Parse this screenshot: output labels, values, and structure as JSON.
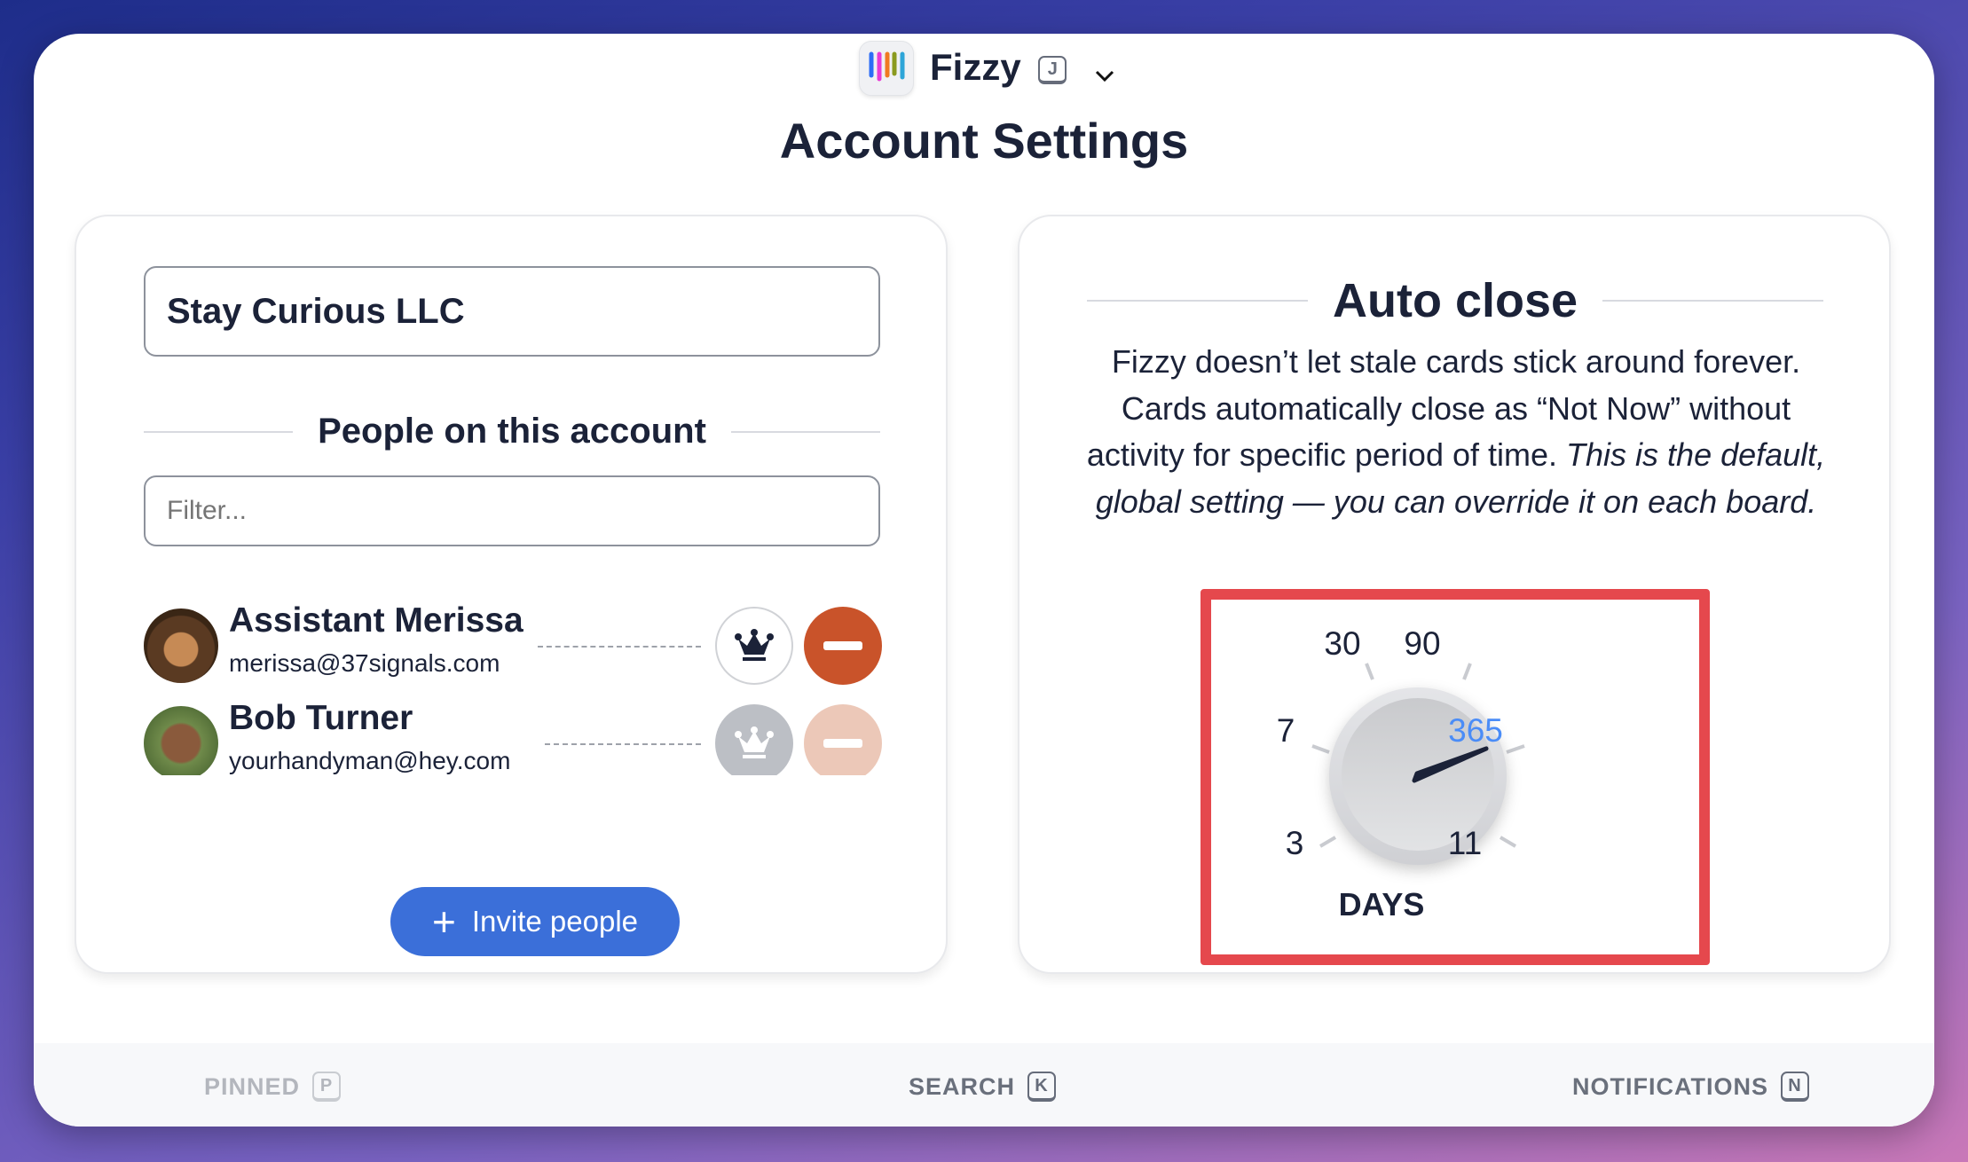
{
  "header": {
    "app_name": "Fizzy",
    "shortcut": "J",
    "page_title": "Account Settings"
  },
  "account": {
    "name_value": "Stay Curious LLC",
    "people_heading": "People on this account",
    "filter_placeholder": "Filter...",
    "people": [
      {
        "name": "Assistant Merissa",
        "email": "merissa@37signals.com",
        "admin": true,
        "removable": true
      },
      {
        "name": "Bob Turner",
        "email": "yourhandyman@hey.com",
        "admin": false,
        "removable": false
      }
    ],
    "invite_label": "Invite people"
  },
  "auto_close": {
    "heading": "Auto close",
    "description": "Fizzy doesn’t let stale cards stick around forever. Cards automatically close as “Not Now” without activity for specific period of time.",
    "description_italic": "This is the default, global setting — you can override it on each board.",
    "dial": {
      "options": [
        "3",
        "7",
        "30",
        "90",
        "365",
        "11"
      ],
      "selected": "365",
      "unit_label": "DAYS"
    }
  },
  "footer": {
    "pinned": {
      "label": "PINNED",
      "key": "P"
    },
    "search": {
      "label": "SEARCH",
      "key": "K"
    },
    "notifications": {
      "label": "NOTIFICATIONS",
      "key": "N"
    }
  },
  "colors": {
    "accent": "#3b6fd9",
    "danger": "#c9532a",
    "highlight": "#e5484d",
    "selected_dial": "#4a8cf7"
  }
}
